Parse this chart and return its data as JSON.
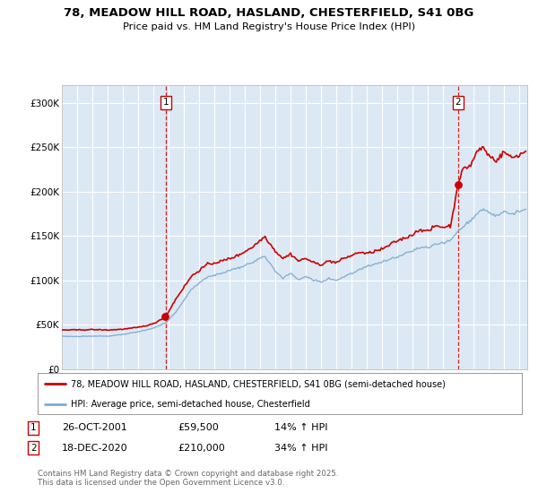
{
  "title_line1": "78, MEADOW HILL ROAD, HASLAND, CHESTERFIELD, S41 0BG",
  "title_line2": "Price paid vs. HM Land Registry's House Price Index (HPI)",
  "bg_color": "#dce9f5",
  "outer_bg_color": "#ffffff",
  "red_line_color": "#cc0000",
  "blue_line_color": "#7eaacc",
  "vline_color": "#cc0000",
  "transaction1_date": "26-OCT-2001",
  "transaction1_price": 59500,
  "transaction1_hpi": "14% ↑ HPI",
  "transaction1_year": 2001.82,
  "transaction2_date": "18-DEC-2020",
  "transaction2_price": 210000,
  "transaction2_hpi": "34% ↑ HPI",
  "transaction2_year": 2020.96,
  "legend_line1": "78, MEADOW HILL ROAD, HASLAND, CHESTERFIELD, S41 0BG (semi-detached house)",
  "legend_line2": "HPI: Average price, semi-detached house, Chesterfield",
  "footnote": "Contains HM Land Registry data © Crown copyright and database right 2025.\nThis data is licensed under the Open Government Licence v3.0.",
  "ylim": [
    0,
    320000
  ],
  "yticks": [
    0,
    50000,
    100000,
    150000,
    200000,
    250000,
    300000
  ],
  "ytick_labels": [
    "£0",
    "£50K",
    "£100K",
    "£150K",
    "£200K",
    "£250K",
    "£300K"
  ],
  "xstart": 1995.0,
  "xend": 2025.5
}
